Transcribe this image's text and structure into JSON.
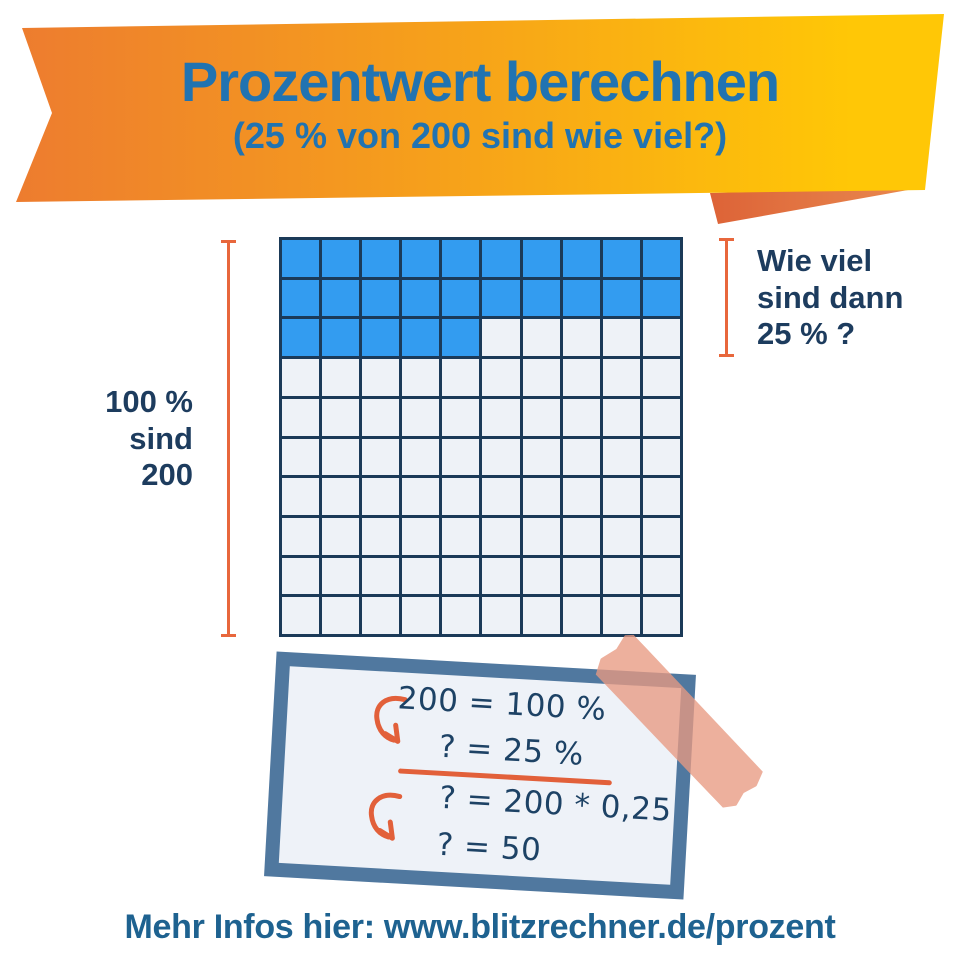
{
  "banner": {
    "title": "Prozentwert berechnen",
    "subtitle": "(25 % von 200 sind wie viel?)"
  },
  "grid": {
    "rows": 10,
    "cols": 10,
    "filled": 25,
    "filled_color": "#339cf0",
    "empty_color": "#eef2f7",
    "line_color": "#1b3a58"
  },
  "left_label": {
    "lines": [
      "100 %",
      "sind",
      "200"
    ]
  },
  "right_label": {
    "lines": [
      "Wie viel",
      "sind dann",
      "25 % ?"
    ]
  },
  "formula": {
    "line1": "200 = 100 %",
    "line2": "? = 25 %",
    "line3": "? = 200 * 0,25",
    "line4": "? = 50"
  },
  "footer": {
    "text": "Mehr Infos hier: www.blitzrechner.de/prozent"
  },
  "colors": {
    "banner-orange": "#ed7c2f",
    "banner-mid": "#f6a01b",
    "banner-yellow": "#ffc706",
    "fold-dark": "#dd6337",
    "fold-light": "#e98a50",
    "title-blue": "#2173b1",
    "navy": "#1d3c5e",
    "accent-orange": "#e8673c",
    "grid-line": "#1b3a58",
    "cell-blue": "#339cf0",
    "cell-empty": "#eef2f7",
    "card-border": "#50789f",
    "card-bg": "#eef2f8",
    "card-text": "#1d4265",
    "arrow-orange": "#e2603a",
    "footer-blue": "#1e6290"
  }
}
